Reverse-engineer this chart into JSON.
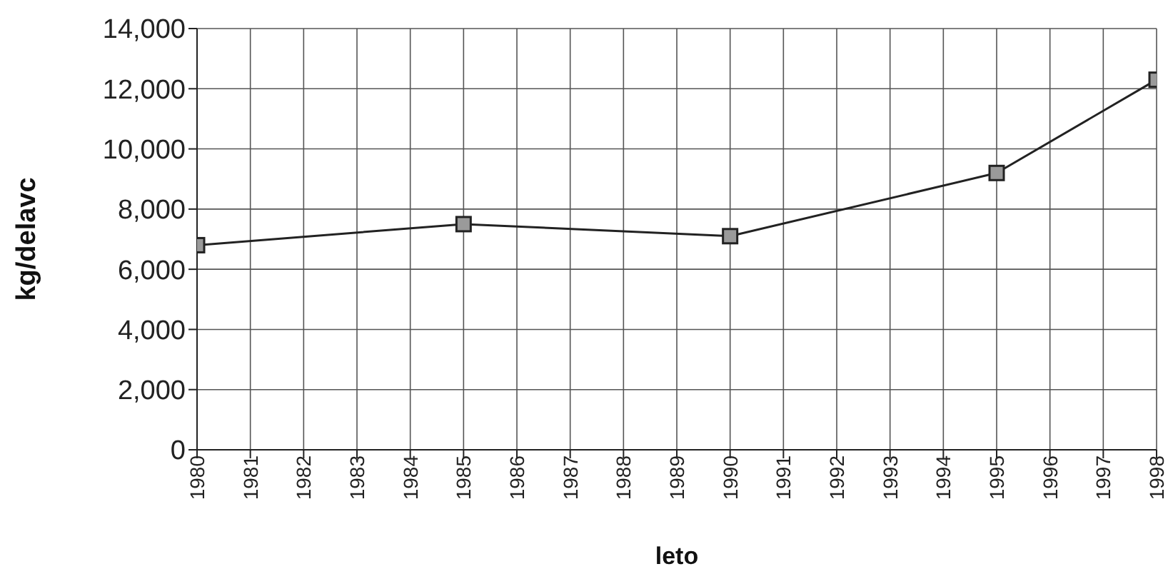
{
  "chart_data": {
    "type": "line",
    "xlabel": "leto",
    "ylabel": "kg/delavc",
    "x": [
      1980,
      1985,
      1990,
      1995,
      1998
    ],
    "series": [
      {
        "color": "#222222",
        "values": [
          6800,
          7500,
          7100,
          9200,
          12300
        ]
      }
    ],
    "xlim": [
      1980,
      1998
    ],
    "xticks": [
      1980,
      1981,
      1982,
      1983,
      1984,
      1985,
      1986,
      1987,
      1988,
      1989,
      1990,
      1991,
      1992,
      1993,
      1994,
      1995,
      1996,
      1997,
      1998
    ],
    "ylim": [
      0,
      14000
    ],
    "yticks": [
      0,
      {
        "value": 2000,
        "label": "2,000"
      },
      {
        "value": 4000,
        "label": "4,000"
      },
      {
        "value": 6000,
        "label": "6,000"
      },
      {
        "value": 8000,
        "label": "8,000"
      },
      {
        "value": 10000,
        "label": "10,000"
      },
      {
        "value": 12000,
        "label": "12,000"
      },
      {
        "value": 14000,
        "label": "14,000"
      }
    ],
    "grid": true,
    "marker": "square",
    "line_style": "solid"
  }
}
